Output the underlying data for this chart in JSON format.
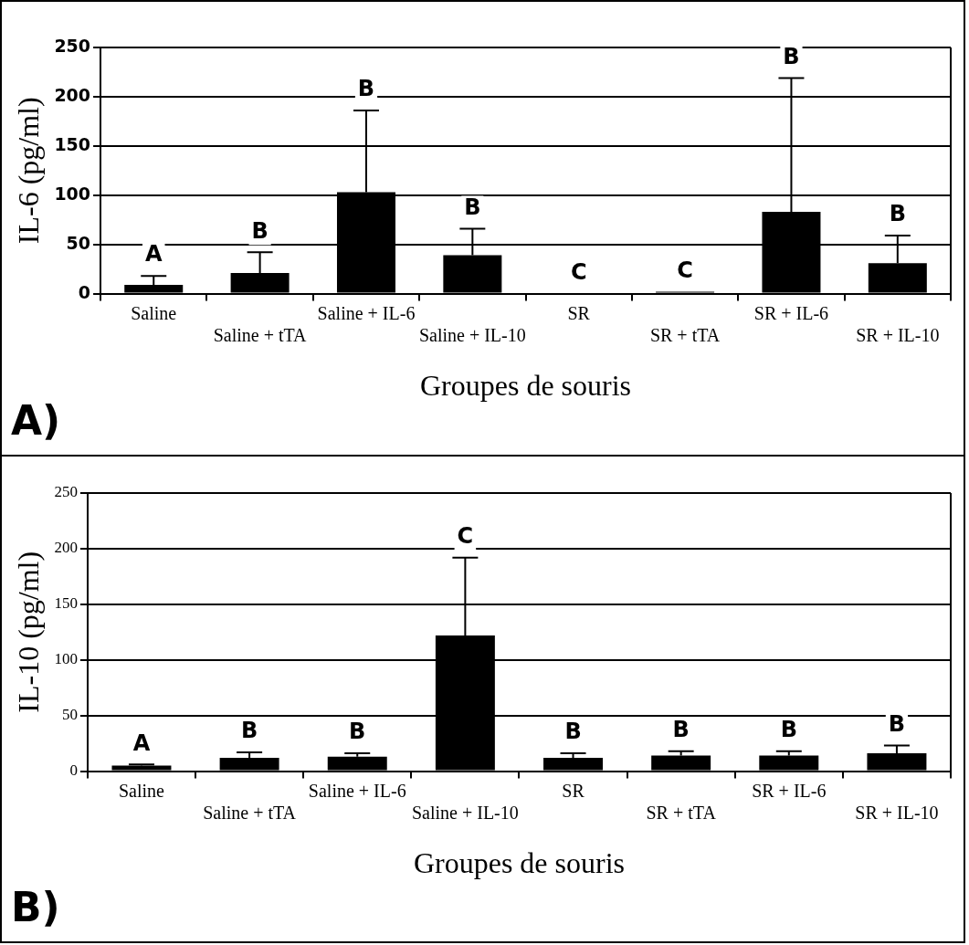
{
  "chart_data": [
    {
      "type": "bar",
      "ylabel": "IL-6 (pg/ml)",
      "xlabel": "Groupes de souris",
      "categories": [
        "Saline",
        "Saline + tTA",
        "Saline + IL-6",
        "Saline + IL-10",
        "SR",
        "SR + tTA",
        "SR + IL-6",
        "SR + IL-10"
      ],
      "values": [
        9,
        21,
        103,
        39,
        0,
        2,
        83,
        31
      ],
      "color": "#000000",
      "errors": [
        [
          9,
          18
        ],
        [
          21,
          42
        ],
        [
          103,
          186
        ],
        [
          39,
          66
        ],
        null,
        null,
        [
          83,
          219
        ],
        [
          31,
          59
        ]
      ],
      "ylim": [
        0,
        250
      ],
      "yticks": [
        0,
        50,
        100,
        150,
        200,
        250
      ],
      "grid": "y",
      "legend": false,
      "annotations": [
        "A",
        "B",
        "B",
        "B",
        "C",
        "C",
        "B",
        "B",
        "A)"
      ]
    },
    {
      "type": "bar",
      "ylabel": "IL-10 (pg/ml)",
      "xlabel": "Groupes de souris",
      "categories": [
        "Saline",
        "Saline + tTA",
        "Saline + IL-6",
        "Saline + IL-10",
        "SR",
        "SR + tTA",
        "SR + IL-6",
        "SR + IL-10"
      ],
      "values": [
        5,
        12,
        13,
        122,
        12,
        14,
        14,
        16
      ],
      "color": "#000000",
      "errors": [
        [
          5,
          6
        ],
        [
          12,
          17
        ],
        [
          13,
          16
        ],
        [
          122,
          192
        ],
        [
          12,
          16
        ],
        [
          14,
          18
        ],
        [
          14,
          18
        ],
        [
          16,
          23
        ]
      ],
      "ylim": [
        0,
        250
      ],
      "yticks": [
        0,
        50,
        100,
        150,
        200,
        250
      ],
      "grid": "y",
      "legend": false,
      "annotations": [
        "A",
        "B",
        "B",
        "C",
        "B",
        "B",
        "B",
        "B",
        "B)"
      ]
    }
  ]
}
